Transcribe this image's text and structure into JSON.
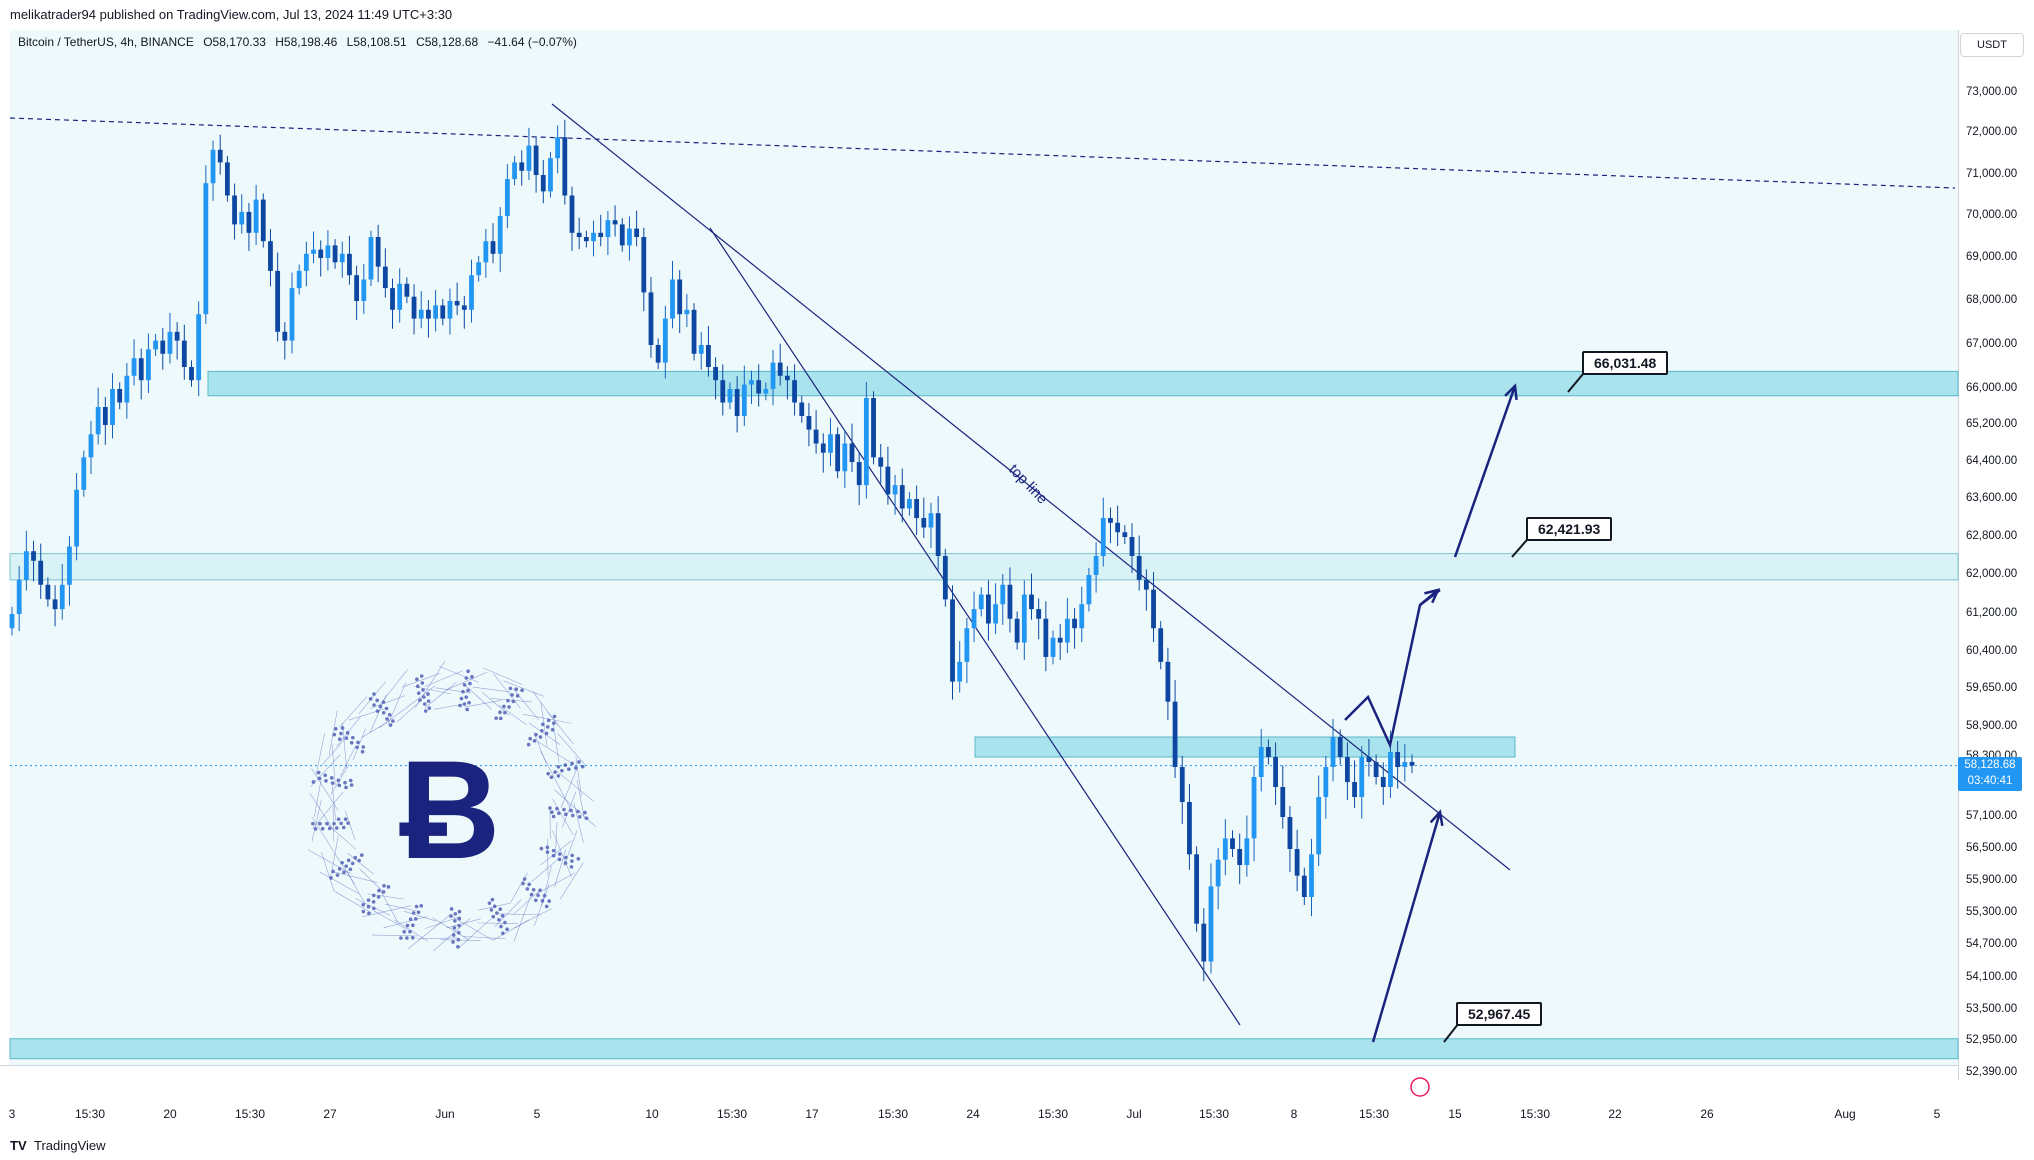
{
  "header": {
    "published": "melikatrader94 published on TradingView.com, Jul 13, 2024 11:49 UTC+3:30"
  },
  "symbol_bar": {
    "name": "Bitcoin / TetherUS, 4h, BINANCE",
    "open": "O58,170.33",
    "high": "H58,198.46",
    "low": "L58,108.51",
    "close": "C58,128.68",
    "change": "−41.64 (−0.07%)"
  },
  "currency": "USDT",
  "last_price": {
    "value": "58,128.68",
    "countdown": "03:40:41"
  },
  "footer": {
    "brand": "TradingView",
    "logo": "tradingview-logo-icon"
  },
  "colors": {
    "background": "#eef9fb",
    "zone": "#a9e3ee",
    "line": "#1a237e",
    "candle_up": "#1565c0",
    "candle_down": "#0d47a1",
    "last_price": "#2196f3"
  },
  "chart_data": {
    "type": "candlestick",
    "timeframe": "4h",
    "y_ticks": [
      "73,000.00",
      "72,000.00",
      "71,000.00",
      "70,000.00",
      "69,000.00",
      "68,000.00",
      "67,000.00",
      "66,000.00",
      "65,200.00",
      "64,400.00",
      "63,600.00",
      "62,800.00",
      "62,000.00",
      "61,200.00",
      "60,400.00",
      "59,650.00",
      "58,900.00",
      "58,300.00",
      "57,700.00",
      "57,100.00",
      "56,500.00",
      "55,900.00",
      "55,300.00",
      "54,700.00",
      "54,100.00",
      "53,500.00",
      "52,950.00",
      "52,390.00"
    ],
    "x_ticks": [
      {
        "label": "3",
        "x": 12
      },
      {
        "label": "15:30",
        "x": 90
      },
      {
        "label": "20",
        "x": 170
      },
      {
        "label": "15:30",
        "x": 250
      },
      {
        "label": "27",
        "x": 330
      },
      {
        "label": "Jun",
        "x": 445
      },
      {
        "label": "5",
        "x": 537
      },
      {
        "label": "10",
        "x": 652
      },
      {
        "label": "15:30",
        "x": 732
      },
      {
        "label": "17",
        "x": 812
      },
      {
        "label": "15:30",
        "x": 893
      },
      {
        "label": "24",
        "x": 973
      },
      {
        "label": "15:30",
        "x": 1053
      },
      {
        "label": "Jul",
        "x": 1134
      },
      {
        "label": "15:30",
        "x": 1214
      },
      {
        "label": "8",
        "x": 1294
      },
      {
        "label": "15:30",
        "x": 1374
      },
      {
        "label": "15",
        "x": 1455
      },
      {
        "label": "15:30",
        "x": 1535
      },
      {
        "label": "22",
        "x": 1615
      },
      {
        "label": "26",
        "x": 1707
      },
      {
        "label": "Aug",
        "x": 1845
      },
      {
        "label": "5",
        "x": 1937
      }
    ],
    "levels": [
      {
        "label": "66,031.48"
      },
      {
        "label": "62,421.93"
      },
      {
        "label": "52,967.45"
      }
    ],
    "annotations": [
      "top line"
    ],
    "candles_close": [
      61200,
      61900,
      62500,
      62300,
      61800,
      61500,
      61300,
      61800,
      62600,
      63800,
      64500,
      65000,
      65600,
      65200,
      66000,
      65700,
      66300,
      66700,
      66200,
      66900,
      67100,
      66800,
      67300,
      67100,
      66500,
      66200,
      67700,
      70800,
      71600,
      71300,
      70500,
      69800,
      70100,
      69600,
      70400,
      69400,
      68700,
      67300,
      67100,
      68300,
      68700,
      69100,
      69200,
      69000,
      69300,
      68900,
      69100,
      68600,
      68000,
      68500,
      69500,
      68800,
      68300,
      67800,
      68400,
      68100,
      67600,
      67800,
      67600,
      67900,
      67600,
      68000,
      67900,
      67800,
      68600,
      68900,
      69400,
      69100,
      70000,
      70900,
      71300,
      71100,
      71700,
      71000,
      70600,
      71400,
      71900,
      70500,
      69600,
      69500,
      69400,
      69600,
      69500,
      69900,
      69800,
      69300,
      69700,
      69500,
      68200,
      67000,
      66600,
      67600,
      68500,
      67700,
      67800,
      66800,
      67000,
      66500,
      66200,
      65700,
      66000,
      65400,
      66100,
      66200,
      65900,
      66000,
      66600,
      66300,
      66200,
      65700,
      65400,
      65100,
      64800,
      64600,
      65000,
      64200,
      64800,
      64400,
      63900,
      65800,
      64500,
      64300,
      63700,
      63900,
      63400,
      63600,
      63200,
      63000,
      63300,
      62400,
      61500,
      59800,
      60200,
      60900,
      61300,
      61600,
      61000,
      61400,
      61800,
      61100,
      60600,
      61600,
      61300,
      61100,
      60300,
      60700,
      60600,
      61100,
      60900,
      61400,
      62000,
      62400,
      63200,
      63100,
      62900,
      62800,
      62400,
      61900,
      61700,
      60900,
      60200,
      59400,
      58100,
      57400,
      56400,
      55100,
      54400,
      55800,
      56300,
      56700,
      56500,
      56200,
      56700,
      57900,
      58500,
      58300,
      57700,
      57100,
      56500,
      56000,
      55600,
      56400,
      57500,
      58100,
      58700,
      58300,
      57800,
      57500,
      58300,
      58200,
      57900,
      57700,
      58400,
      58100,
      58200,
      58128
    ]
  }
}
